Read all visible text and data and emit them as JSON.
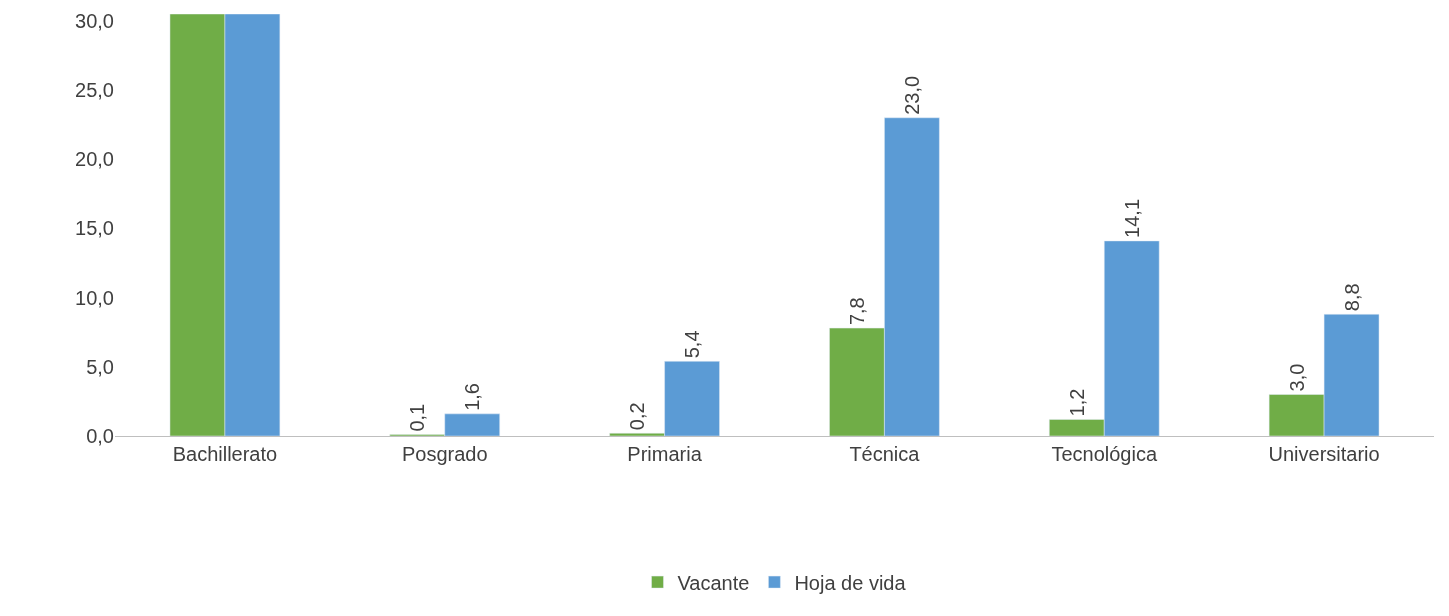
{
  "chart_data": {
    "type": "bar",
    "categories": [
      "Bachillerato",
      "Posgrado",
      "Primaria",
      "Técnica",
      "Tecnológica",
      "Universitario"
    ],
    "series": [
      {
        "name": "Vacante",
        "color": "#70ad47",
        "values": [
          30.5,
          0.1,
          0.2,
          7.8,
          1.2,
          3.0
        ],
        "value_labels": [
          null,
          "0,1",
          "0,2",
          "7,8",
          "1,2",
          "3,0"
        ]
      },
      {
        "name": "Hoja de vida",
        "color": "#5b9bd5",
        "values": [
          30.5,
          1.6,
          5.4,
          23.0,
          14.1,
          8.8
        ],
        "value_labels": [
          null,
          "1,6",
          "5,4",
          "23,0",
          "14,1",
          "8,8"
        ]
      }
    ],
    "ylim": [
      0,
      30.5
    ],
    "yticks": [
      {
        "value": 0,
        "label": "0,0"
      },
      {
        "value": 5,
        "label": "5,0"
      },
      {
        "value": 10,
        "label": "10,0"
      },
      {
        "value": 15,
        "label": "15,0"
      },
      {
        "value": 20,
        "label": "20,0"
      },
      {
        "value": 25,
        "label": "25,0"
      },
      {
        "value": 30,
        "label": "30,0"
      }
    ],
    "legend": "bottom"
  }
}
